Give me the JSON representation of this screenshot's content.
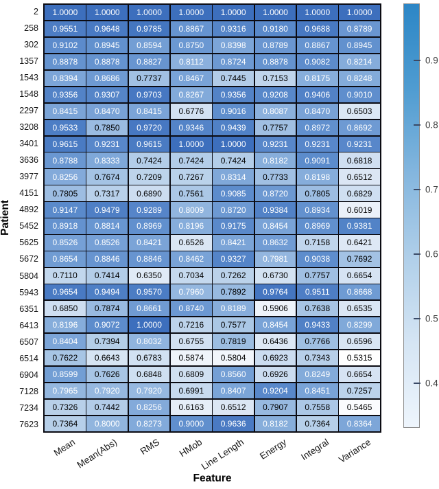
{
  "figure": {
    "background_color": "#ffffff"
  },
  "chart_data": {
    "type": "heatmap",
    "xlabel": "Feature",
    "ylabel": "Patient",
    "columns": [
      "Mean",
      "Mean(Abs)",
      "RMS",
      "HMob",
      "Line Length",
      "Energy",
      "Integral",
      "Variance"
    ],
    "rows": [
      "2",
      "258",
      "302",
      "1357",
      "1543",
      "1548",
      "2297",
      "3208",
      "3401",
      "3636",
      "3977",
      "4151",
      "4892",
      "5452",
      "5625",
      "5672",
      "5804",
      "5943",
      "6351",
      "6413",
      "6507",
      "6514",
      "6904",
      "7128",
      "7234",
      "7623"
    ],
    "values": [
      [
        1.0,
        1.0,
        1.0,
        1.0,
        1.0,
        1.0,
        1.0,
        1.0
      ],
      [
        0.9551,
        0.9648,
        0.9785,
        0.8867,
        0.9316,
        0.918,
        0.9688,
        0.8789
      ],
      [
        0.9102,
        0.8945,
        0.8594,
        0.875,
        0.8398,
        0.8789,
        0.8867,
        0.8945
      ],
      [
        0.8878,
        0.8878,
        0.8827,
        0.8112,
        0.8724,
        0.8878,
        0.9082,
        0.8214
      ],
      [
        0.8394,
        0.8686,
        0.7737,
        0.8467,
        0.7445,
        0.7153,
        0.8175,
        0.8248
      ],
      [
        0.9356,
        0.9307,
        0.9703,
        0.8267,
        0.9356,
        0.9208,
        0.9406,
        0.901
      ],
      [
        0.8415,
        0.847,
        0.8415,
        0.6776,
        0.9016,
        0.8087,
        0.847,
        0.6503
      ],
      [
        0.9533,
        0.785,
        0.972,
        0.9346,
        0.9439,
        0.7757,
        0.8972,
        0.8692
      ],
      [
        0.9615,
        0.9231,
        0.9615,
        1.0,
        1.0,
        0.9231,
        0.9231,
        0.9231
      ],
      [
        0.8788,
        0.8333,
        0.7424,
        0.7424,
        0.7424,
        0.8182,
        0.9091,
        0.6818
      ],
      [
        0.8256,
        0.7674,
        0.7209,
        0.7267,
        0.8314,
        0.7733,
        0.8198,
        0.6512
      ],
      [
        0.7805,
        0.7317,
        0.689,
        0.7561,
        0.9085,
        0.872,
        0.7805,
        0.6829
      ],
      [
        0.9147,
        0.9479,
        0.9289,
        0.8009,
        0.872,
        0.9384,
        0.8934,
        0.6019
      ],
      [
        0.8918,
        0.8814,
        0.8969,
        0.8196,
        0.9175,
        0.8454,
        0.8969,
        0.9381
      ],
      [
        0.8526,
        0.8526,
        0.8421,
        0.6526,
        0.8421,
        0.8632,
        0.7158,
        0.6421
      ],
      [
        0.8654,
        0.8846,
        0.8846,
        0.8462,
        0.9327,
        0.7981,
        0.9038,
        0.7692
      ],
      [
        0.711,
        0.7414,
        0.635,
        0.7034,
        0.7262,
        0.673,
        0.7757,
        0.6654
      ],
      [
        0.9654,
        0.9494,
        0.957,
        0.796,
        0.7892,
        0.9764,
        0.9511,
        0.8668
      ],
      [
        0.685,
        0.7874,
        0.8661,
        0.874,
        0.8189,
        0.5906,
        0.7638,
        0.6535
      ],
      [
        0.8196,
        0.9072,
        1.0,
        0.7216,
        0.7577,
        0.8454,
        0.9433,
        0.8299
      ],
      [
        0.8404,
        0.7394,
        0.8032,
        0.6755,
        0.7819,
        0.6436,
        0.7766,
        0.6596
      ],
      [
        0.7622,
        0.6643,
        0.6783,
        0.5874,
        0.5804,
        0.6923,
        0.7343,
        0.5315
      ],
      [
        0.8599,
        0.7626,
        0.6848,
        0.6809,
        0.856,
        0.6926,
        0.8249,
        0.6654
      ],
      [
        0.7965,
        0.792,
        0.792,
        0.6991,
        0.8407,
        0.9204,
        0.8451,
        0.7257
      ],
      [
        0.7326,
        0.7442,
        0.8256,
        0.6163,
        0.6512,
        0.7907,
        0.7558,
        0.5465
      ],
      [
        0.7364,
        0.8,
        0.8273,
        0.9,
        0.9636,
        0.8182,
        0.7364,
        0.8364
      ]
    ],
    "value_decimals": 4,
    "color_scale": {
      "min": 0.5315,
      "max": 1.0,
      "low_color": "#ffffff",
      "high_color": "#3d6fbd",
      "white_text_threshold": 0.7915,
      "stops": [
        {
          "t": 0.0,
          "rgb": [
            255,
            255,
            255
          ]
        },
        {
          "t": 0.15,
          "rgb": [
            235,
            241,
            249
          ]
        },
        {
          "t": 0.31,
          "rgb": [
            210,
            225,
            242
          ]
        },
        {
          "t": 0.45,
          "rgb": [
            179,
            205,
            232
          ]
        },
        {
          "t": 0.63,
          "rgb": [
            130,
            170,
            218
          ]
        },
        {
          "t": 0.79,
          "rgb": [
            95,
            142,
            205
          ]
        },
        {
          "t": 1.0,
          "rgb": [
            61,
            111,
            189
          ]
        }
      ]
    },
    "colorbar": {
      "ticks": [
        0.9,
        0.8,
        0.7,
        0.6,
        0.5,
        0.4
      ],
      "range_min": 0.331,
      "range_max": 0.988,
      "gradient_bottom_to_top": [
        "#eef5fc",
        "#d5e5f4",
        "#b0cfe9",
        "#84b6de",
        "#4f9cd1",
        "#2c86c6"
      ]
    },
    "grid_line_color": "#0b0b12",
    "legend_position": "right"
  }
}
